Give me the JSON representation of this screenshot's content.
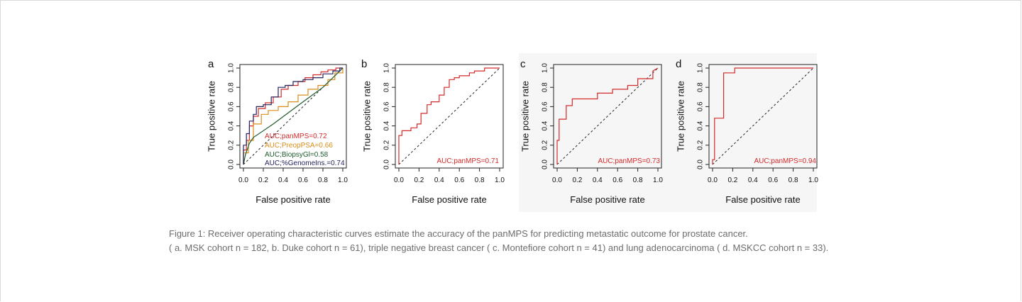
{
  "caption": {
    "line1": "Figure 1: Receiver operating characteristic curves estimate the accuracy of the panMPS for predicting metastatic outcome for prostate cancer.",
    "line2": "( a. MSK cohort n = 182, b. Duke cohort n = 61), triple negative breast cancer ( c. Montefiore cohort n = 41) and lung adenocarcinoma ( d. MSKCC cohort n = 33)."
  },
  "colors": {
    "panMPS": "#d42a2a",
    "PreopPSA": "#d98d1a",
    "BiopsyGl": "#1f5b2e",
    "GenomeIns": "#23235e",
    "shade": "#f6f6f6"
  },
  "chart_data": [
    {
      "panel": "a",
      "type": "line",
      "xlabel": "False positive rate",
      "ylabel": "True positive rate",
      "xlim": [
        0,
        1
      ],
      "ylim": [
        0,
        1
      ],
      "ticks": [
        "0.0",
        "0.2",
        "0.4",
        "0.6",
        "0.8",
        "1.0"
      ],
      "diagonal": true,
      "series": [
        {
          "name": "AUC;panMPS=0.72",
          "color": "#d42a2a",
          "x": [
            0,
            0,
            0.03,
            0.03,
            0.06,
            0.06,
            0.1,
            0.1,
            0.15,
            0.15,
            0.22,
            0.22,
            0.3,
            0.3,
            0.38,
            0.38,
            0.45,
            0.45,
            0.55,
            0.55,
            0.62,
            0.62,
            0.7,
            0.7,
            0.78,
            0.78,
            0.85,
            0.85,
            0.93,
            0.93,
            1.0,
            1.0
          ],
          "y": [
            0,
            0.15,
            0.15,
            0.25,
            0.25,
            0.4,
            0.4,
            0.5,
            0.5,
            0.58,
            0.58,
            0.64,
            0.64,
            0.7,
            0.7,
            0.78,
            0.78,
            0.82,
            0.82,
            0.86,
            0.86,
            0.9,
            0.9,
            0.93,
            0.93,
            0.96,
            0.96,
            0.98,
            0.98,
            1.0,
            1.0,
            1.0
          ]
        },
        {
          "name": "AUC;PreopPSA=0.66",
          "color": "#d98d1a",
          "x": [
            0,
            0,
            0.05,
            0.05,
            0.1,
            0.1,
            0.18,
            0.18,
            0.25,
            0.25,
            0.35,
            0.35,
            0.45,
            0.45,
            0.55,
            0.55,
            0.65,
            0.65,
            0.75,
            0.75,
            0.85,
            0.85,
            0.92,
            0.92,
            1.0,
            1.0
          ],
          "y": [
            0,
            0.12,
            0.12,
            0.25,
            0.25,
            0.42,
            0.42,
            0.52,
            0.52,
            0.56,
            0.56,
            0.6,
            0.6,
            0.65,
            0.65,
            0.72,
            0.72,
            0.78,
            0.78,
            0.82,
            0.82,
            0.88,
            0.88,
            0.95,
            0.95,
            1.0
          ]
        },
        {
          "name": "AUC;BiopsyGl=0.58",
          "color": "#1f5b2e",
          "x": [
            0,
            0.02,
            0.06,
            0.1,
            0.3,
            0.6,
            0.8,
            1.0
          ],
          "y": [
            0,
            0.1,
            0.22,
            0.28,
            0.42,
            0.65,
            0.8,
            1.0
          ]
        },
        {
          "name": "AUC;%GenomeIns.=0.74",
          "color": "#23235e",
          "x": [
            0,
            0,
            0.03,
            0.03,
            0.06,
            0.06,
            0.1,
            0.1,
            0.13,
            0.13,
            0.2,
            0.2,
            0.28,
            0.28,
            0.35,
            0.35,
            0.42,
            0.42,
            0.5,
            0.5,
            0.6,
            0.6,
            0.7,
            0.7,
            0.8,
            0.8,
            0.9,
            0.9,
            0.97,
            0.97,
            1.0
          ],
          "y": [
            0,
            0.2,
            0.2,
            0.32,
            0.32,
            0.45,
            0.45,
            0.52,
            0.52,
            0.6,
            0.6,
            0.62,
            0.62,
            0.7,
            0.7,
            0.8,
            0.8,
            0.82,
            0.82,
            0.86,
            0.86,
            0.88,
            0.88,
            0.9,
            0.9,
            0.94,
            0.94,
            0.97,
            0.97,
            1.0,
            1.0
          ]
        }
      ]
    },
    {
      "panel": "b",
      "type": "line",
      "xlabel": "False positive rate",
      "ylabel": "True positive rate",
      "xlim": [
        0,
        1
      ],
      "ylim": [
        0,
        1
      ],
      "ticks": [
        "0.0",
        "0.2",
        "0.4",
        "0.6",
        "0.8",
        "1.0"
      ],
      "diagonal": true,
      "series": [
        {
          "name": "AUC;panMPS=0.71",
          "color": "#d42a2a",
          "x": [
            0,
            0,
            0.03,
            0.03,
            0.12,
            0.12,
            0.18,
            0.18,
            0.22,
            0.22,
            0.28,
            0.28,
            0.32,
            0.32,
            0.4,
            0.4,
            0.45,
            0.45,
            0.5,
            0.5,
            0.55,
            0.55,
            0.6,
            0.6,
            0.7,
            0.7,
            0.75,
            0.75,
            0.85,
            0.85,
            1.0
          ],
          "y": [
            0,
            0.3,
            0.3,
            0.35,
            0.35,
            0.38,
            0.38,
            0.42,
            0.42,
            0.53,
            0.53,
            0.62,
            0.62,
            0.65,
            0.65,
            0.72,
            0.72,
            0.8,
            0.8,
            0.88,
            0.88,
            0.9,
            0.9,
            0.92,
            0.92,
            0.95,
            0.95,
            0.97,
            0.97,
            1.0,
            1.0
          ]
        }
      ]
    },
    {
      "panel": "c",
      "type": "line",
      "xlabel": "False positive rate",
      "ylabel": "True positive rate",
      "xlim": [
        0,
        1
      ],
      "ylim": [
        0,
        1
      ],
      "ticks": [
        "0.0",
        "0.2",
        "0.4",
        "0.6",
        "0.8",
        "1.0"
      ],
      "diagonal": true,
      "series": [
        {
          "name": "AUC;panMPS=0.73",
          "color": "#d42a2a",
          "x": [
            0,
            0,
            0.02,
            0.02,
            0.09,
            0.09,
            0.15,
            0.15,
            0.4,
            0.4,
            0.55,
            0.55,
            0.7,
            0.7,
            0.8,
            0.8,
            0.95,
            0.95,
            1.0
          ],
          "y": [
            0,
            0.25,
            0.25,
            0.47,
            0.47,
            0.61,
            0.61,
            0.68,
            0.68,
            0.74,
            0.74,
            0.78,
            0.78,
            0.82,
            0.82,
            0.89,
            0.89,
            0.97,
            1.0
          ]
        }
      ]
    },
    {
      "panel": "d",
      "type": "line",
      "xlabel": "False positive rate",
      "ylabel": "True positive rate",
      "xlim": [
        0,
        1
      ],
      "ylim": [
        0,
        1
      ],
      "ticks": [
        "0.0",
        "0.2",
        "0.4",
        "0.6",
        "0.8",
        "1.0"
      ],
      "diagonal": true,
      "series": [
        {
          "name": "AUC;panMPS=0.94",
          "color": "#d42a2a",
          "x": [
            0,
            0,
            0.02,
            0.02,
            0.11,
            0.11,
            0.22,
            0.22,
            1.0
          ],
          "y": [
            0,
            0.05,
            0.05,
            0.48,
            0.48,
            0.95,
            0.95,
            1.0,
            1.0
          ]
        }
      ]
    }
  ]
}
